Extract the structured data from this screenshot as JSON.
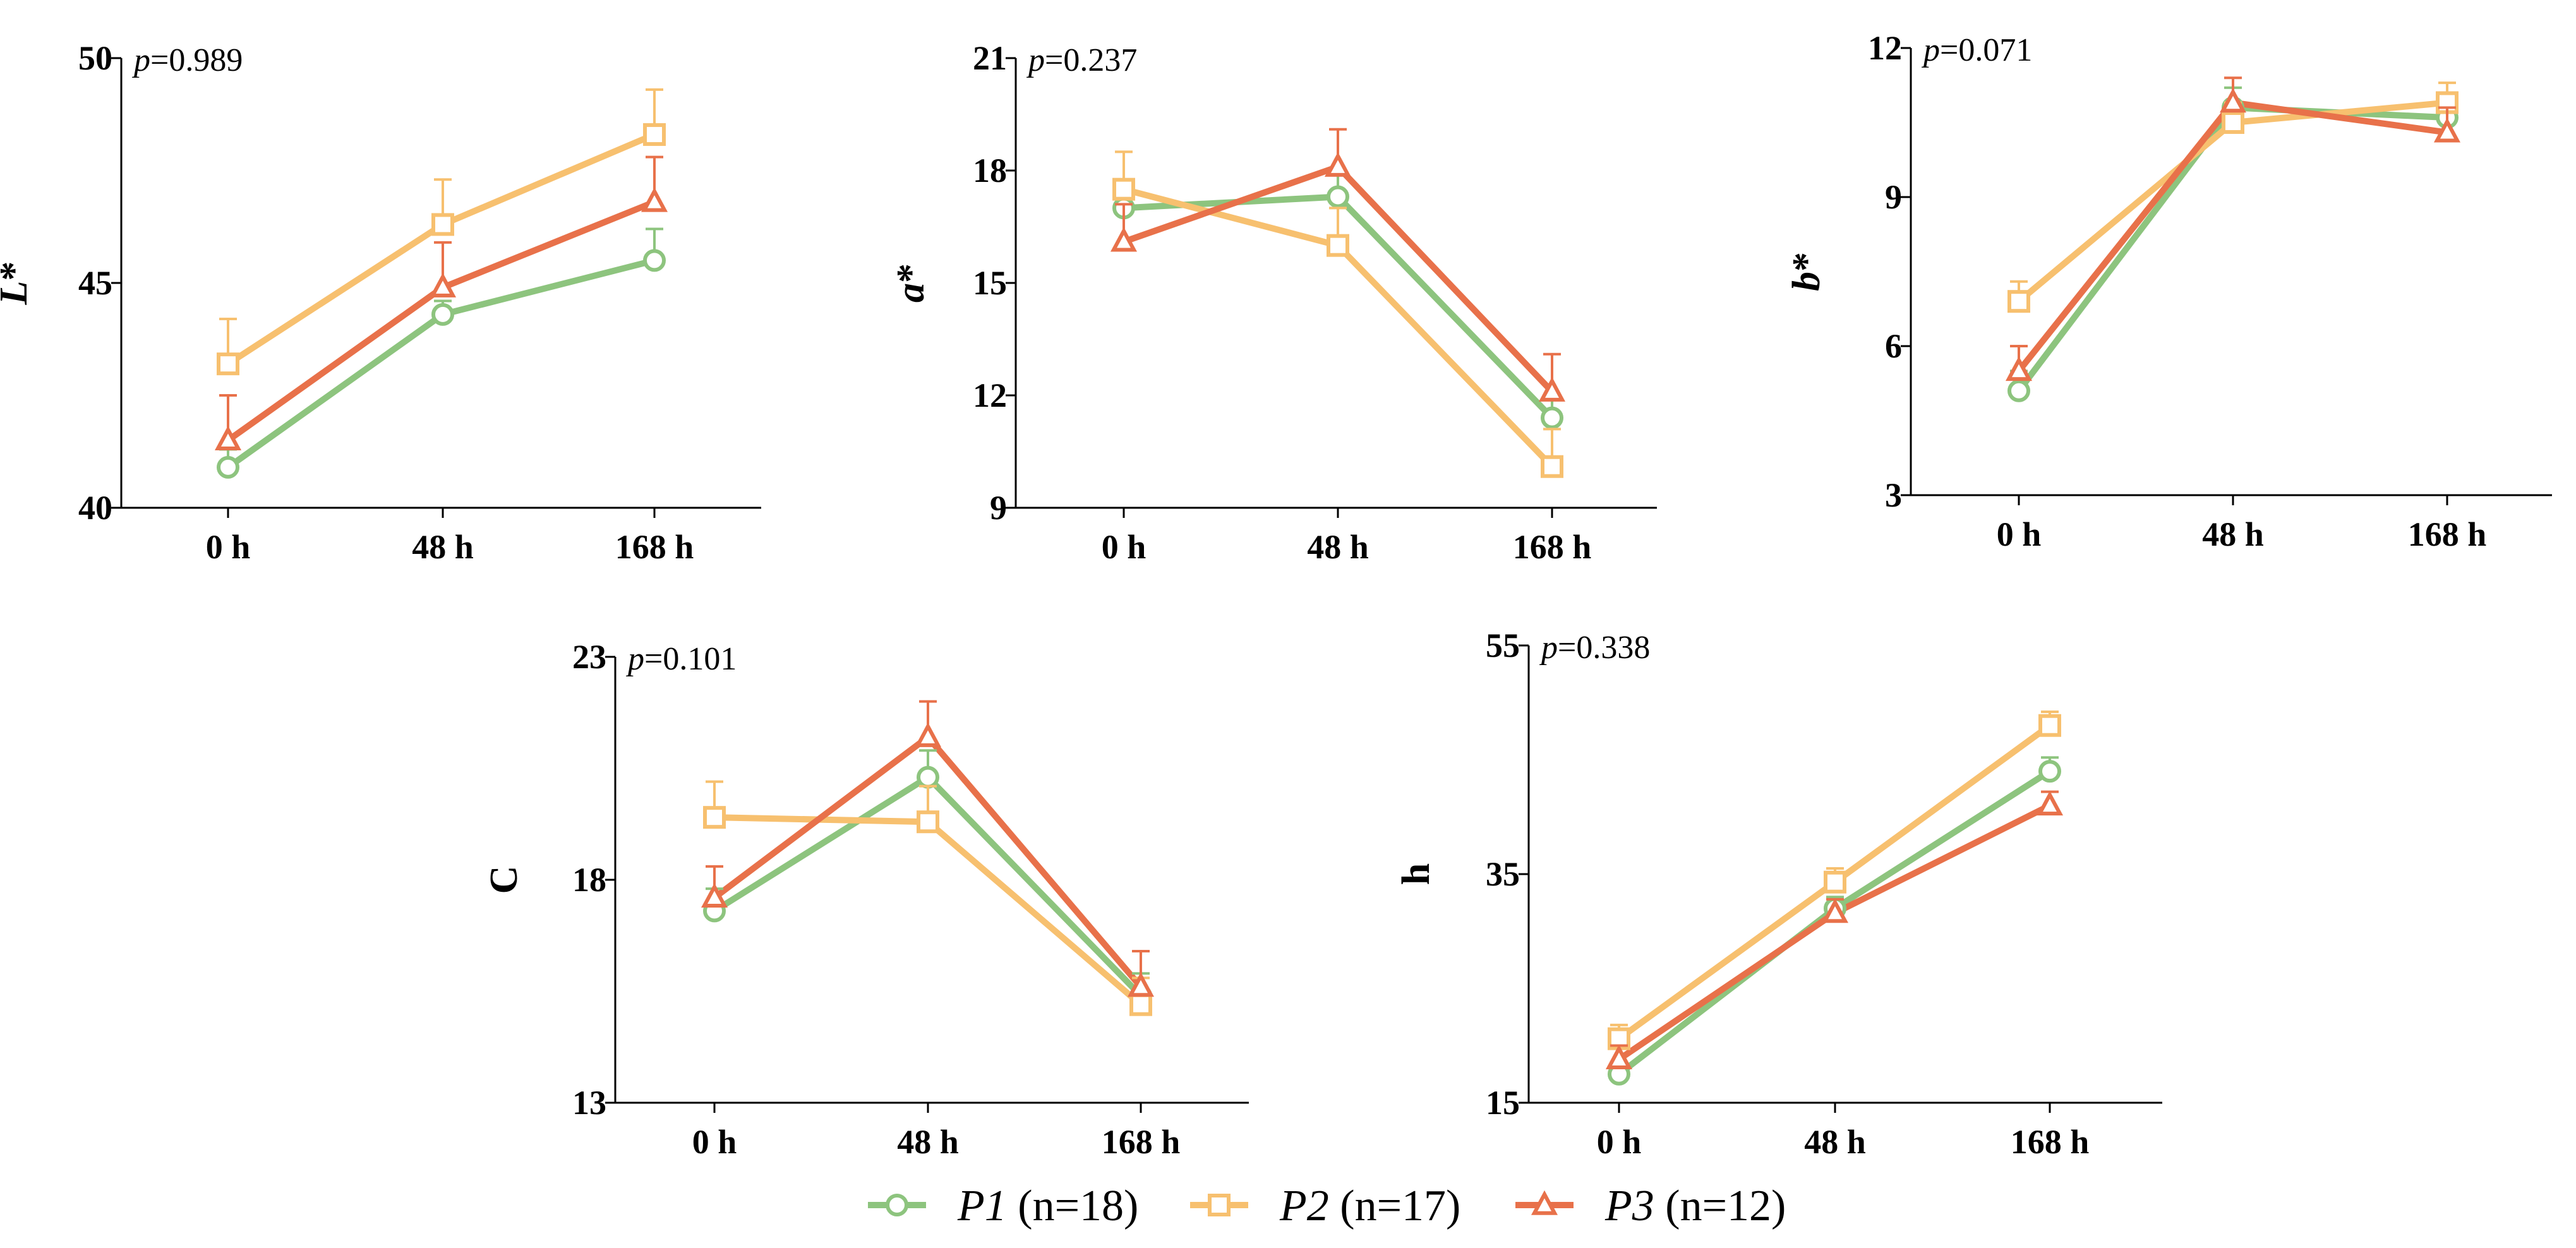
{
  "colors": {
    "P1": "#8DC47E",
    "P2": "#F7C06F",
    "P3": "#E8714A"
  },
  "legend": [
    {
      "key": "P1",
      "name": "P1",
      "n": "(n=18)",
      "marker": "circle"
    },
    {
      "key": "P2",
      "name": "P2",
      "n": "(n=17)",
      "marker": "square"
    },
    {
      "key": "P3",
      "name": "P3",
      "n": "(n=12)",
      "marker": "triangle"
    }
  ],
  "chart_data": [
    {
      "type": "line",
      "ylabel": "L*",
      "ylabel_main": "L",
      "ylabel_suffix": "*",
      "ylabel_italic": true,
      "p_label": "p",
      "p_value": "=0.989",
      "categories": [
        "0 h",
        "48 h",
        "168 h"
      ],
      "ylim": [
        40,
        50
      ],
      "yticks": [
        "40",
        "45",
        "50"
      ],
      "series": [
        {
          "name": "P1",
          "values": [
            40.9,
            44.3,
            45.5
          ],
          "errors": [
            0.4,
            0.3,
            0.7
          ]
        },
        {
          "name": "P2",
          "values": [
            43.2,
            46.3,
            48.3
          ],
          "errors": [
            1.0,
            1.0,
            1.0
          ]
        },
        {
          "name": "P3",
          "values": [
            41.5,
            44.9,
            46.8
          ],
          "errors": [
            1.0,
            1.0,
            1.0
          ]
        }
      ]
    },
    {
      "type": "line",
      "ylabel": "a*",
      "ylabel_main": "a",
      "ylabel_suffix": "*",
      "ylabel_italic": true,
      "p_label": "p",
      "p_value": "=0.237",
      "categories": [
        "0 h",
        "48 h",
        "168 h"
      ],
      "ylim": [
        9,
        21
      ],
      "yticks": [
        "9",
        "12",
        "15",
        "18",
        "21"
      ],
      "series": [
        {
          "name": "P1",
          "values": [
            17.0,
            17.3,
            11.4
          ],
          "errors": [
            0.6,
            0.6,
            0.6
          ]
        },
        {
          "name": "P2",
          "values": [
            17.5,
            16.0,
            10.1
          ],
          "errors": [
            1.0,
            1.0,
            1.0
          ]
        },
        {
          "name": "P3",
          "values": [
            16.1,
            18.1,
            12.1
          ],
          "errors": [
            1.0,
            1.0,
            1.0
          ]
        }
      ]
    },
    {
      "type": "line",
      "ylabel": "b*",
      "ylabel_main": "b",
      "ylabel_suffix": "*",
      "ylabel_italic": true,
      "p_label": "p",
      "p_value": "=0.071",
      "categories": [
        "0 h",
        "48 h",
        "168 h"
      ],
      "ylim": [
        3,
        12
      ],
      "yticks": [
        "3",
        "6",
        "9",
        "12"
      ],
      "series": [
        {
          "name": "P1",
          "values": [
            5.1,
            10.8,
            10.6
          ],
          "errors": [
            0.4,
            0.4,
            0.3
          ]
        },
        {
          "name": "P2",
          "values": [
            6.9,
            10.5,
            10.9
          ],
          "errors": [
            0.4,
            0.4,
            0.4
          ]
        },
        {
          "name": "P3",
          "values": [
            5.5,
            10.9,
            10.3
          ],
          "errors": [
            0.5,
            0.5,
            0.5
          ]
        }
      ]
    },
    {
      "type": "line",
      "ylabel": "C",
      "ylabel_main": "C",
      "ylabel_suffix": "",
      "ylabel_italic": false,
      "p_label": "p",
      "p_value": "=0.101",
      "categories": [
        "0 h",
        "48 h",
        "168 h"
      ],
      "ylim": [
        13,
        23
      ],
      "yticks": [
        "13",
        "18",
        "23"
      ],
      "series": [
        {
          "name": "P1",
          "values": [
            17.3,
            20.3,
            15.4
          ],
          "errors": [
            0.5,
            0.6,
            0.5
          ]
        },
        {
          "name": "P2",
          "values": [
            19.4,
            19.3,
            15.2
          ],
          "errors": [
            0.8,
            0.8,
            0.6
          ]
        },
        {
          "name": "P3",
          "values": [
            17.6,
            21.2,
            15.6
          ],
          "errors": [
            0.7,
            0.8,
            0.8
          ]
        }
      ]
    },
    {
      "type": "line",
      "ylabel": "h",
      "ylabel_main": "h",
      "ylabel_suffix": "",
      "ylabel_italic": false,
      "p_label": "p",
      "p_value": "=0.338",
      "categories": [
        "0 h",
        "48 h",
        "168 h"
      ],
      "ylim": [
        15,
        55
      ],
      "yticks": [
        "15",
        "35",
        "55"
      ],
      "series": [
        {
          "name": "P1",
          "values": [
            17.5,
            32.0,
            44.0
          ],
          "errors": [
            0.5,
            1.0,
            1.2
          ]
        },
        {
          "name": "P2",
          "values": [
            20.6,
            34.3,
            48.0
          ],
          "errors": [
            1.2,
            1.2,
            1.2
          ]
        },
        {
          "name": "P3",
          "values": [
            18.8,
            31.6,
            41.0
          ],
          "errors": [
            1.2,
            1.2,
            1.2
          ]
        }
      ]
    }
  ]
}
